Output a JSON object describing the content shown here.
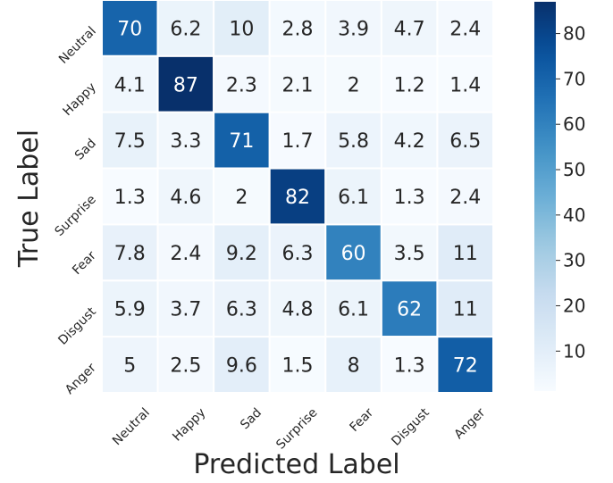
{
  "chart_data": {
    "type": "heatmap",
    "title": "",
    "xlabel": "Predicted Label",
    "ylabel": "True Label",
    "x_categories": [
      "Neutral",
      "Happy",
      "Sad",
      "Surprise",
      "Fear",
      "Disgust",
      "Anger"
    ],
    "y_categories": [
      "Neutral",
      "Happy",
      "Sad",
      "Surprise",
      "Fear",
      "Disgust",
      "Anger"
    ],
    "values": [
      [
        70,
        6.2,
        10,
        2.8,
        3.9,
        4.7,
        2.4
      ],
      [
        4.1,
        87,
        2.3,
        2.1,
        2,
        1.2,
        1.4
      ],
      [
        7.5,
        3.3,
        71,
        1.7,
        5.8,
        4.2,
        6.5
      ],
      [
        1.3,
        4.6,
        2,
        82,
        6.1,
        1.3,
        2.4
      ],
      [
        7.8,
        2.4,
        9.2,
        6.3,
        60,
        3.5,
        11
      ],
      [
        5.9,
        3.7,
        6.3,
        4.8,
        6.1,
        62,
        11
      ],
      [
        5,
        2.5,
        9.6,
        1.5,
        8,
        1.3,
        72
      ]
    ],
    "colormap": "Blues",
    "colorbar": {
      "min": 1.2,
      "max": 87,
      "ticks": [
        10,
        20,
        30,
        40,
        50,
        60,
        70,
        80
      ]
    },
    "colors": {
      "low": "#f7fbff",
      "high": "#08306b",
      "cell_border": "#ffffff",
      "text_dark": "#262626",
      "text_light": "#ffffff"
    }
  }
}
